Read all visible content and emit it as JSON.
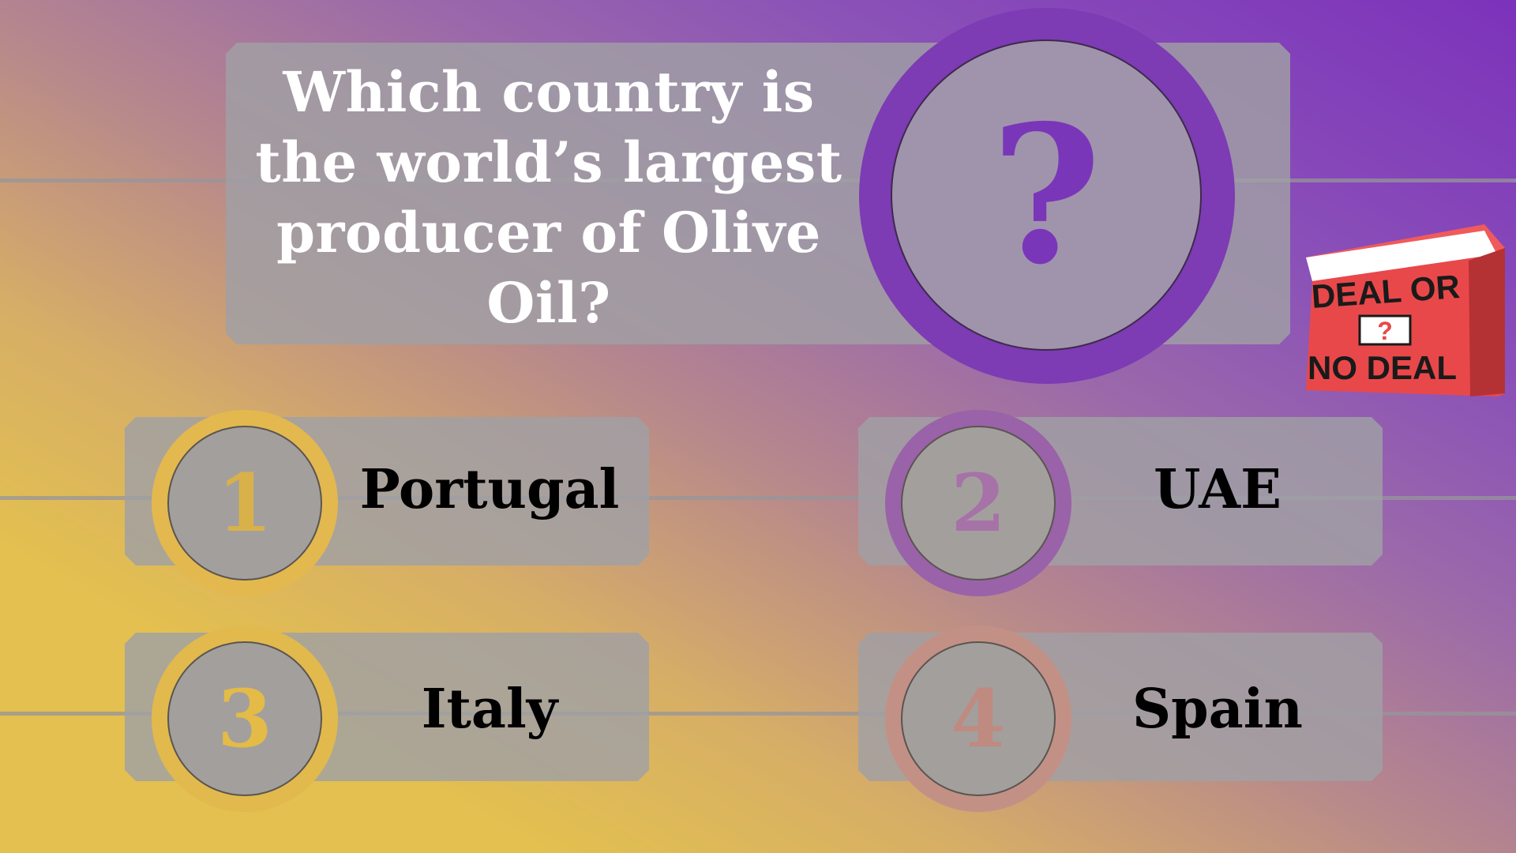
{
  "question": {
    "text": "Which country is the world’s largest producer of Olive Oil?",
    "badge_symbol": "?"
  },
  "answers": [
    {
      "number": "1",
      "label": "Portugal",
      "ring_color": "#e3b84f",
      "number_color": "#d9b14a"
    },
    {
      "number": "2",
      "label": "UAE",
      "ring_color": "#9a62a8",
      "number_color": "#a672a8"
    },
    {
      "number": "3",
      "label": "Italy",
      "ring_color": "#e1b94d",
      "number_color": "#e3bb46"
    },
    {
      "number": "4",
      "label": "Spain",
      "ring_color": "#c39086",
      "number_color": "#bf8a80"
    }
  ],
  "logo": {
    "line1": "DEAL OR",
    "badge": "?",
    "line2": "NO DEAL",
    "box_color": "#e9484a"
  },
  "colors": {
    "accent_purple": "#7d3bb4",
    "accent_gold": "#e3c04f",
    "panel_grey": "#a0a0a5"
  }
}
